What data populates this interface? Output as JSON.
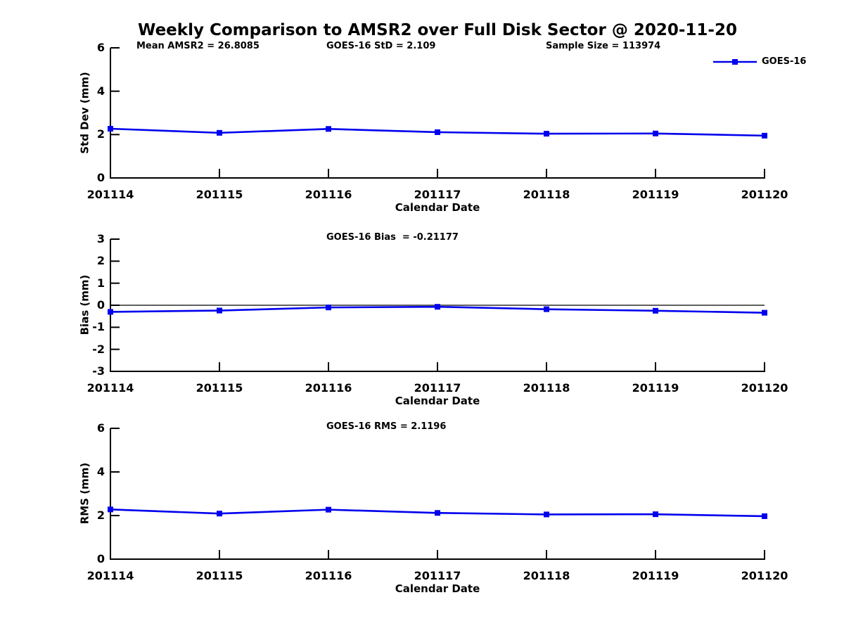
{
  "title": "Weekly Comparison to AMSR2 over Full Disk Sector @ 2020-11-20",
  "legend": {
    "label": "GOES-16",
    "color": "#0000EE",
    "position": "top-right",
    "marker": "square"
  },
  "chart_data": [
    {
      "type": "line",
      "panel": "std-dev",
      "categories": [
        "201114",
        "201115",
        "201116",
        "201117",
        "201118",
        "201119",
        "201120"
      ],
      "series": [
        {
          "name": "GOES-16",
          "color": "#0000EE",
          "marker": "square",
          "values": [
            2.27,
            2.08,
            2.26,
            2.11,
            2.04,
            2.05,
            1.95
          ]
        }
      ],
      "annotations": [
        "Mean AMSR2 = 26.8085",
        "GOES-16 StD = 2.109",
        "Sample Size = 113974"
      ],
      "xlabel": "Calendar Date",
      "ylabel": "Std Dev (mm)",
      "ylim": [
        0,
        6
      ],
      "yticks": [
        0,
        2,
        4,
        6
      ],
      "grid": false,
      "zero_line": false
    },
    {
      "type": "line",
      "panel": "bias",
      "categories": [
        "201114",
        "201115",
        "201116",
        "201117",
        "201118",
        "201119",
        "201120"
      ],
      "series": [
        {
          "name": "GOES-16",
          "color": "#0000EE",
          "marker": "square",
          "values": [
            -0.3,
            -0.24,
            -0.1,
            -0.07,
            -0.18,
            -0.25,
            -0.34
          ]
        }
      ],
      "annotations": [
        "GOES-16 Bias  = -0.21177"
      ],
      "xlabel": "Calendar Date",
      "ylabel": "Bias (mm)",
      "ylim": [
        -3,
        3
      ],
      "yticks": [
        -3,
        -2,
        -1,
        0,
        1,
        2,
        3
      ],
      "grid": false,
      "zero_line": true
    },
    {
      "type": "line",
      "panel": "rms",
      "categories": [
        "201114",
        "201115",
        "201116",
        "201117",
        "201118",
        "201119",
        "201120"
      ],
      "series": [
        {
          "name": "GOES-16",
          "color": "#0000EE",
          "marker": "square",
          "values": [
            2.28,
            2.09,
            2.27,
            2.12,
            2.05,
            2.06,
            1.97
          ]
        }
      ],
      "annotations": [
        "GOES-16 RMS = 2.1196"
      ],
      "xlabel": "Calendar Date",
      "ylabel": "RMS (mm)",
      "ylim": [
        0,
        6
      ],
      "yticks": [
        0,
        2,
        4,
        6
      ],
      "grid": false,
      "zero_line": false
    }
  ]
}
